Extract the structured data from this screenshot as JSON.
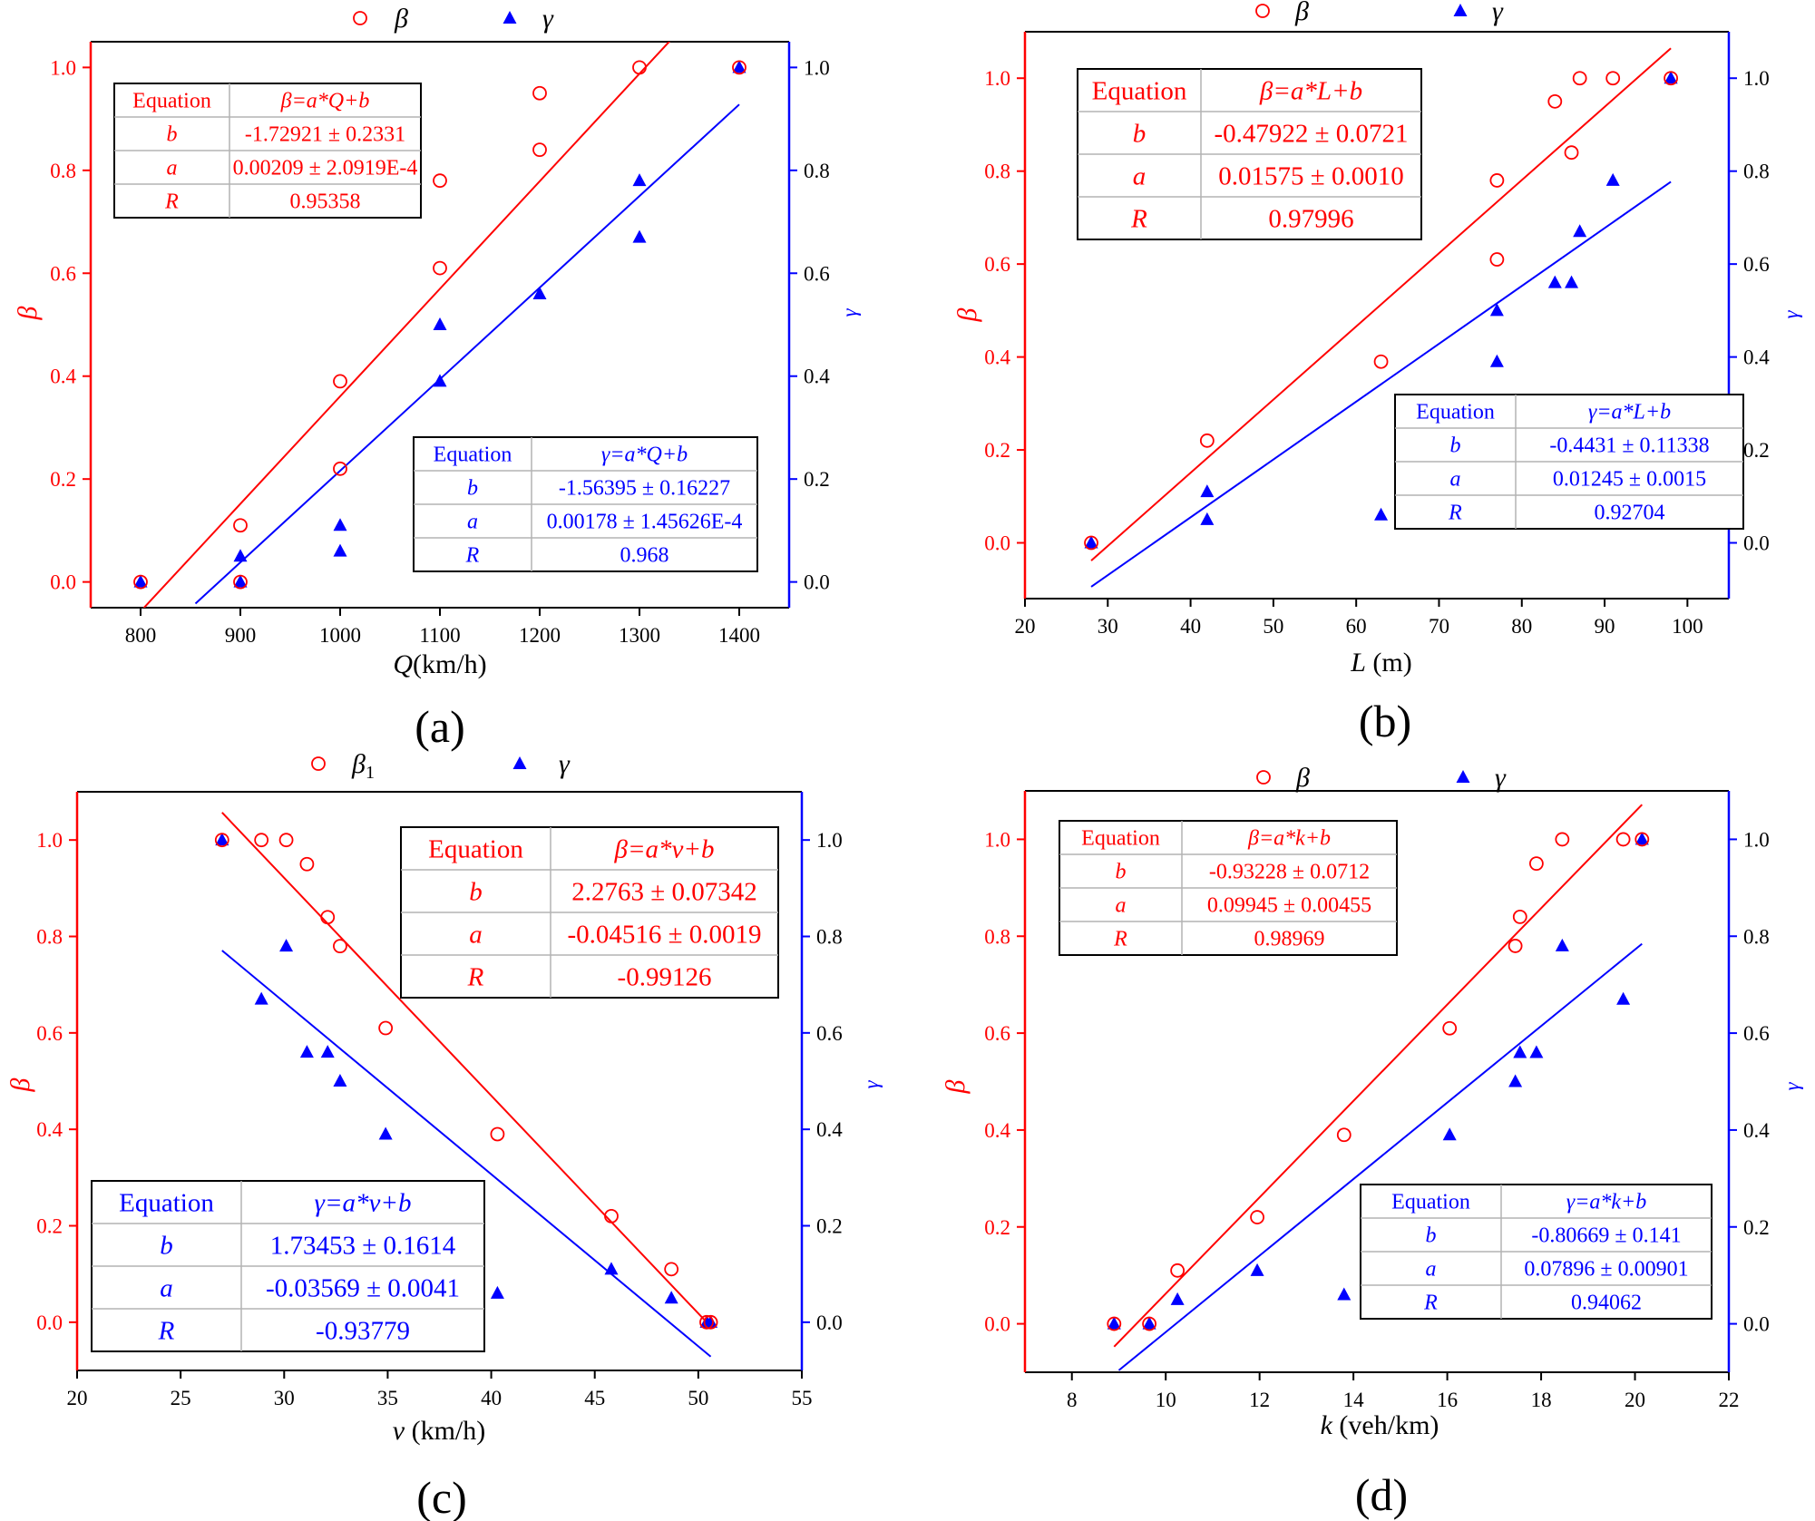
{
  "colors": {
    "beta": "#ff0000",
    "gamma": "#0000ff",
    "axis": "#000000",
    "table_grid": "#b3b3b3"
  },
  "chart_data": [
    {
      "type": "scatter",
      "panel_label": "(a)",
      "xlabel_var": "Q",
      "xlabel_unit": "(km/h)",
      "ylabel_left": "β",
      "ylabel_right": "γ",
      "xlim": [
        750,
        1450
      ],
      "ylim_left": [
        -0.05,
        1.05
      ],
      "ylim_right": [
        -0.05,
        1.05
      ],
      "xticks": [
        800,
        900,
        1000,
        1100,
        1200,
        1300,
        1400
      ],
      "yticks_left": [
        0.0,
        0.2,
        0.4,
        0.6,
        0.8,
        1.0
      ],
      "yticks_right": [
        0.0,
        0.2,
        0.4,
        0.6,
        0.8,
        1.0
      ],
      "legend": [
        "β",
        "γ"
      ],
      "series": [
        {
          "name": "β",
          "marker": "open-circle",
          "axis": "left",
          "x": [
            800,
            900,
            900,
            1000,
            1000,
            1100,
            1100,
            1200,
            1200,
            1300,
            1400
          ],
          "y": [
            0.0,
            0.0,
            0.11,
            0.22,
            0.39,
            0.61,
            0.78,
            0.84,
            0.95,
            1.0,
            1.0
          ]
        },
        {
          "name": "γ",
          "marker": "filled-triangle",
          "axis": "right",
          "x": [
            800,
            900,
            900,
            1000,
            1000,
            1100,
            1100,
            1200,
            1300,
            1300,
            1400
          ],
          "y": [
            0.0,
            0.0,
            0.05,
            0.06,
            0.11,
            0.39,
            0.5,
            0.56,
            0.67,
            0.78,
            1.0
          ]
        }
      ],
      "fits": [
        {
          "series": "β",
          "axis": "left",
          "x_range": [
            800,
            1360
          ],
          "a": 0.00209,
          "b": -1.72921
        },
        {
          "series": "γ",
          "axis": "right",
          "x_range": [
            855,
            1400
          ],
          "a": 0.00178,
          "b": -1.56395
        }
      ],
      "tables": [
        {
          "series": "β",
          "size": "small",
          "position": "top-left",
          "rows": [
            [
              "Equation",
              "β=a*Q+b"
            ],
            [
              "b",
              "-1.72921 ± 0.2331"
            ],
            [
              "a",
              "0.00209 ± 2.0919E-4"
            ],
            [
              "R",
              "0.95358"
            ]
          ]
        },
        {
          "series": "γ",
          "size": "small",
          "position": "bottom-right",
          "rows": [
            [
              "Equation",
              "γ=a*Q+b"
            ],
            [
              "b",
              "-1.56395 ± 0.16227"
            ],
            [
              "a",
              "0.00178 ± 1.45626E-4"
            ],
            [
              "R",
              "0.968"
            ]
          ]
        }
      ]
    },
    {
      "type": "scatter",
      "panel_label": "(b)",
      "xlabel_var": "L",
      "xlabel_unit": " (m)",
      "ylabel_left": "β",
      "ylabel_right": "γ",
      "xlim": [
        20,
        105
      ],
      "ylim_left": [
        -0.12,
        1.1
      ],
      "ylim_right": [
        -0.12,
        1.1
      ],
      "xticks": [
        20,
        30,
        40,
        50,
        60,
        70,
        80,
        90,
        100
      ],
      "yticks_left": [
        0.0,
        0.2,
        0.4,
        0.6,
        0.8,
        1.0
      ],
      "yticks_right": [
        0.0,
        0.2,
        0.4,
        0.6,
        0.8,
        1.0
      ],
      "legend": [
        "β",
        "γ"
      ],
      "series": [
        {
          "name": "β",
          "marker": "open-circle",
          "axis": "left",
          "x": [
            28,
            42,
            63,
            77,
            77,
            84,
            86,
            87,
            91,
            98
          ],
          "y": [
            0.0,
            0.22,
            0.39,
            0.61,
            0.78,
            0.95,
            0.84,
            1.0,
            1.0,
            1.0
          ]
        },
        {
          "name": "γ",
          "marker": "filled-triangle",
          "axis": "right",
          "x": [
            28,
            42,
            42,
            63,
            77,
            77,
            84,
            86,
            87,
            91,
            98
          ],
          "y": [
            0.0,
            0.05,
            0.11,
            0.06,
            0.39,
            0.5,
            0.56,
            0.56,
            0.67,
            0.78,
            1.0
          ]
        }
      ],
      "fits": [
        {
          "series": "β",
          "axis": "left",
          "x_range": [
            28,
            98
          ],
          "a": 0.01575,
          "b": -0.47922
        },
        {
          "series": "γ",
          "axis": "right",
          "x_range": [
            28,
            98
          ],
          "a": 0.01245,
          "b": -0.4431
        }
      ],
      "tables": [
        {
          "series": "β",
          "size": "big",
          "position": "top-left",
          "rows": [
            [
              "Equation",
              "β=a*L+b"
            ],
            [
              "b",
              "-0.47922 ± 0.0721"
            ],
            [
              "a",
              "0.01575 ± 0.0010"
            ],
            [
              "R",
              "0.97996"
            ]
          ]
        },
        {
          "series": "γ",
          "size": "small",
          "position": "bottom-right",
          "rows": [
            [
              "Equation",
              "γ=a*L+b"
            ],
            [
              "b",
              "-0.4431 ± 0.11338"
            ],
            [
              "a",
              "0.01245 ± 0.0015"
            ],
            [
              "R",
              "0.92704"
            ]
          ]
        }
      ]
    },
    {
      "type": "scatter",
      "panel_label": "(c)",
      "xlabel_var": "v",
      "xlabel_unit": " (km/h)",
      "ylabel_left": "β",
      "ylabel_right": "γ",
      "xlim": [
        20,
        55
      ],
      "ylim_left": [
        -0.1,
        1.1
      ],
      "ylim_right": [
        -0.1,
        1.1
      ],
      "xticks": [
        20,
        25,
        30,
        35,
        40,
        45,
        50,
        55
      ],
      "yticks_left": [
        0.0,
        0.2,
        0.4,
        0.6,
        0.8,
        1.0
      ],
      "yticks_right": [
        0.0,
        0.2,
        0.4,
        0.6,
        0.8,
        1.0
      ],
      "legend": [
        "β",
        "γ"
      ],
      "legend_subscript": "1",
      "series": [
        {
          "name": "β",
          "marker": "open-circle",
          "axis": "left",
          "x": [
            27.0,
            28.9,
            30.1,
            31.1,
            32.1,
            32.7,
            34.9,
            40.3,
            45.8,
            48.7,
            50.4,
            50.6
          ],
          "y": [
            1.0,
            1.0,
            1.0,
            0.95,
            0.84,
            0.78,
            0.61,
            0.39,
            0.22,
            0.11,
            0.0,
            0.0
          ]
        },
        {
          "name": "γ",
          "marker": "filled-triangle",
          "axis": "right",
          "x": [
            27.0,
            28.9,
            30.1,
            31.1,
            32.1,
            32.7,
            34.9,
            40.3,
            45.8,
            48.7,
            50.4,
            50.6
          ],
          "y": [
            1.0,
            0.67,
            0.78,
            0.56,
            0.56,
            0.5,
            0.39,
            0.06,
            0.11,
            0.05,
            0.0,
            0.0
          ]
        }
      ],
      "fits": [
        {
          "series": "β",
          "axis": "left",
          "x_range": [
            27,
            50.6
          ],
          "a": -0.04516,
          "b": 2.2763
        },
        {
          "series": "γ",
          "axis": "right",
          "x_range": [
            27,
            50.6
          ],
          "a": -0.03569,
          "b": 1.73453
        }
      ],
      "tables": [
        {
          "series": "β",
          "size": "big",
          "position": "top-right",
          "rows": [
            [
              "Equation",
              "β=a*v+b"
            ],
            [
              "b",
              "2.2763 ± 0.07342"
            ],
            [
              "a",
              "-0.04516 ± 0.0019"
            ],
            [
              "R",
              "-0.99126"
            ]
          ]
        },
        {
          "series": "γ",
          "size": "big",
          "position": "bottom-left",
          "rows": [
            [
              "Equation",
              "γ=a*v+b"
            ],
            [
              "b",
              "1.73453 ± 0.1614"
            ],
            [
              "a",
              "-0.03569 ± 0.0041"
            ],
            [
              "R",
              "-0.93779"
            ]
          ]
        }
      ]
    },
    {
      "type": "scatter",
      "panel_label": "(d)",
      "xlabel_var": "k",
      "xlabel_unit": " (veh/km)",
      "ylabel_left": "β",
      "ylabel_right": "γ",
      "xlim": [
        7,
        22
      ],
      "ylim_left": [
        -0.1,
        1.1
      ],
      "ylim_right": [
        -0.1,
        1.1
      ],
      "xticks": [
        8,
        10,
        12,
        14,
        16,
        18,
        20,
        22
      ],
      "yticks_left": [
        0.0,
        0.2,
        0.4,
        0.6,
        0.8,
        1.0
      ],
      "yticks_right": [
        0.0,
        0.2,
        0.4,
        0.6,
        0.8,
        1.0
      ],
      "legend": [
        "β",
        "γ"
      ],
      "series": [
        {
          "name": "β",
          "marker": "open-circle",
          "axis": "left",
          "x": [
            8.9,
            9.65,
            10.25,
            11.95,
            13.8,
            16.05,
            17.45,
            17.55,
            17.9,
            18.45,
            19.75,
            20.15
          ],
          "y": [
            0.0,
            0.0,
            0.11,
            0.22,
            0.39,
            0.61,
            0.78,
            0.84,
            0.95,
            1.0,
            1.0,
            1.0
          ]
        },
        {
          "name": "γ",
          "marker": "filled-triangle",
          "axis": "right",
          "x": [
            8.9,
            9.65,
            10.25,
            11.95,
            13.8,
            16.05,
            17.45,
            17.55,
            17.9,
            18.45,
            19.75,
            20.15
          ],
          "y": [
            0.0,
            0.0,
            0.05,
            0.11,
            0.06,
            0.39,
            0.5,
            0.56,
            0.56,
            0.78,
            0.67,
            1.0
          ]
        }
      ],
      "fits": [
        {
          "series": "β",
          "axis": "left",
          "x_range": [
            8.9,
            20.15
          ],
          "a": 0.09945,
          "b": -0.93228
        },
        {
          "series": "γ",
          "axis": "right",
          "x_range": [
            9.0,
            20.15
          ],
          "a": 0.07896,
          "b": -0.80669
        }
      ],
      "tables": [
        {
          "series": "β",
          "size": "small",
          "position": "top-left",
          "rows": [
            [
              "Equation",
              "β=a*k+b"
            ],
            [
              "b",
              "-0.93228 ± 0.0712"
            ],
            [
              "a",
              "0.09945 ± 0.00455"
            ],
            [
              "R",
              "0.98969"
            ]
          ]
        },
        {
          "series": "γ",
          "size": "small",
          "position": "bottom-right",
          "rows": [
            [
              "Equation",
              "γ=a*k+b"
            ],
            [
              "b",
              "-0.80669 ± 0.141"
            ],
            [
              "a",
              "0.07896 ± 0.00901"
            ],
            [
              "R",
              "0.94062"
            ]
          ]
        }
      ]
    }
  ]
}
